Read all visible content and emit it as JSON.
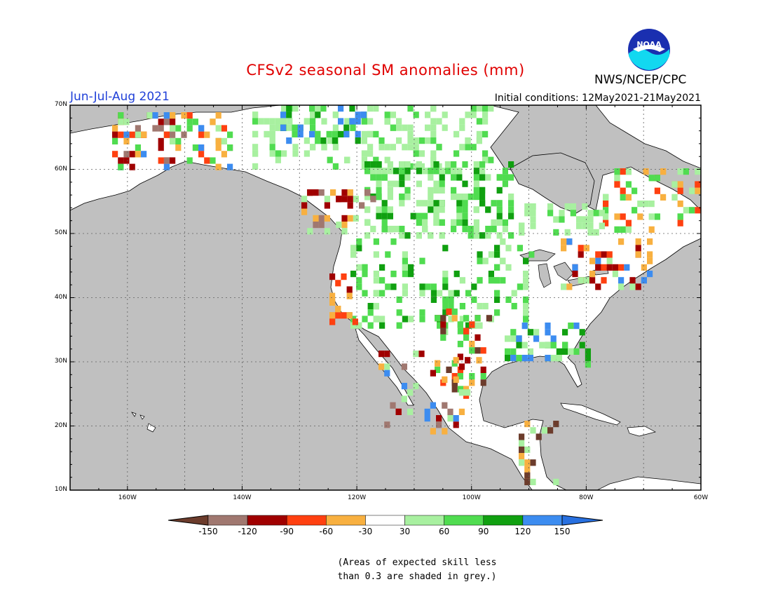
{
  "header": {
    "title": "CFSv2 seasonal SM anomalies (mm)",
    "season": "Jun-Jul-Aug 2021",
    "initial_conditions": "Initial conditions: 12May2021-21May2021",
    "agency": "NWS/NCEP/CPC",
    "logo_text": "NOAA"
  },
  "map": {
    "lat_range": [
      10,
      70
    ],
    "lon_range": [
      -170,
      -60
    ],
    "lat_ticks": [
      "10N",
      "20N",
      "30N",
      "40N",
      "50N",
      "60N",
      "70N"
    ],
    "lon_ticks": [
      "160W",
      "140W",
      "120W",
      "100W",
      "80W",
      "60W"
    ],
    "colors": {
      "ocean": "#c0c0c0",
      "land": "#ffffff",
      "lt_green": "#a8f0a0",
      "green": "#50dc50",
      "dk_green": "#10a010",
      "blue": "#3c8cf0",
      "orange": "#f8b040",
      "red_orange": "#ff4010",
      "dk_red": "#a00000",
      "brown": "#a07870",
      "dk_brown": "#6c3c2c"
    }
  },
  "legend": {
    "labels": [
      "-150",
      "-120",
      "-90",
      "-60",
      "-30",
      "30",
      "60",
      "90",
      "120",
      "150"
    ],
    "colors": [
      "#6c3c2c",
      "#a07870",
      "#a00000",
      "#ff4010",
      "#f8b040",
      "#ffffff",
      "#a8f0a0",
      "#50dc50",
      "#10a010",
      "#3c8cf0",
      "#2870e0"
    ]
  },
  "note": {
    "line1": "(Areas of expected skill less",
    "line2": "than 0.3 are shaded in grey.)"
  }
}
